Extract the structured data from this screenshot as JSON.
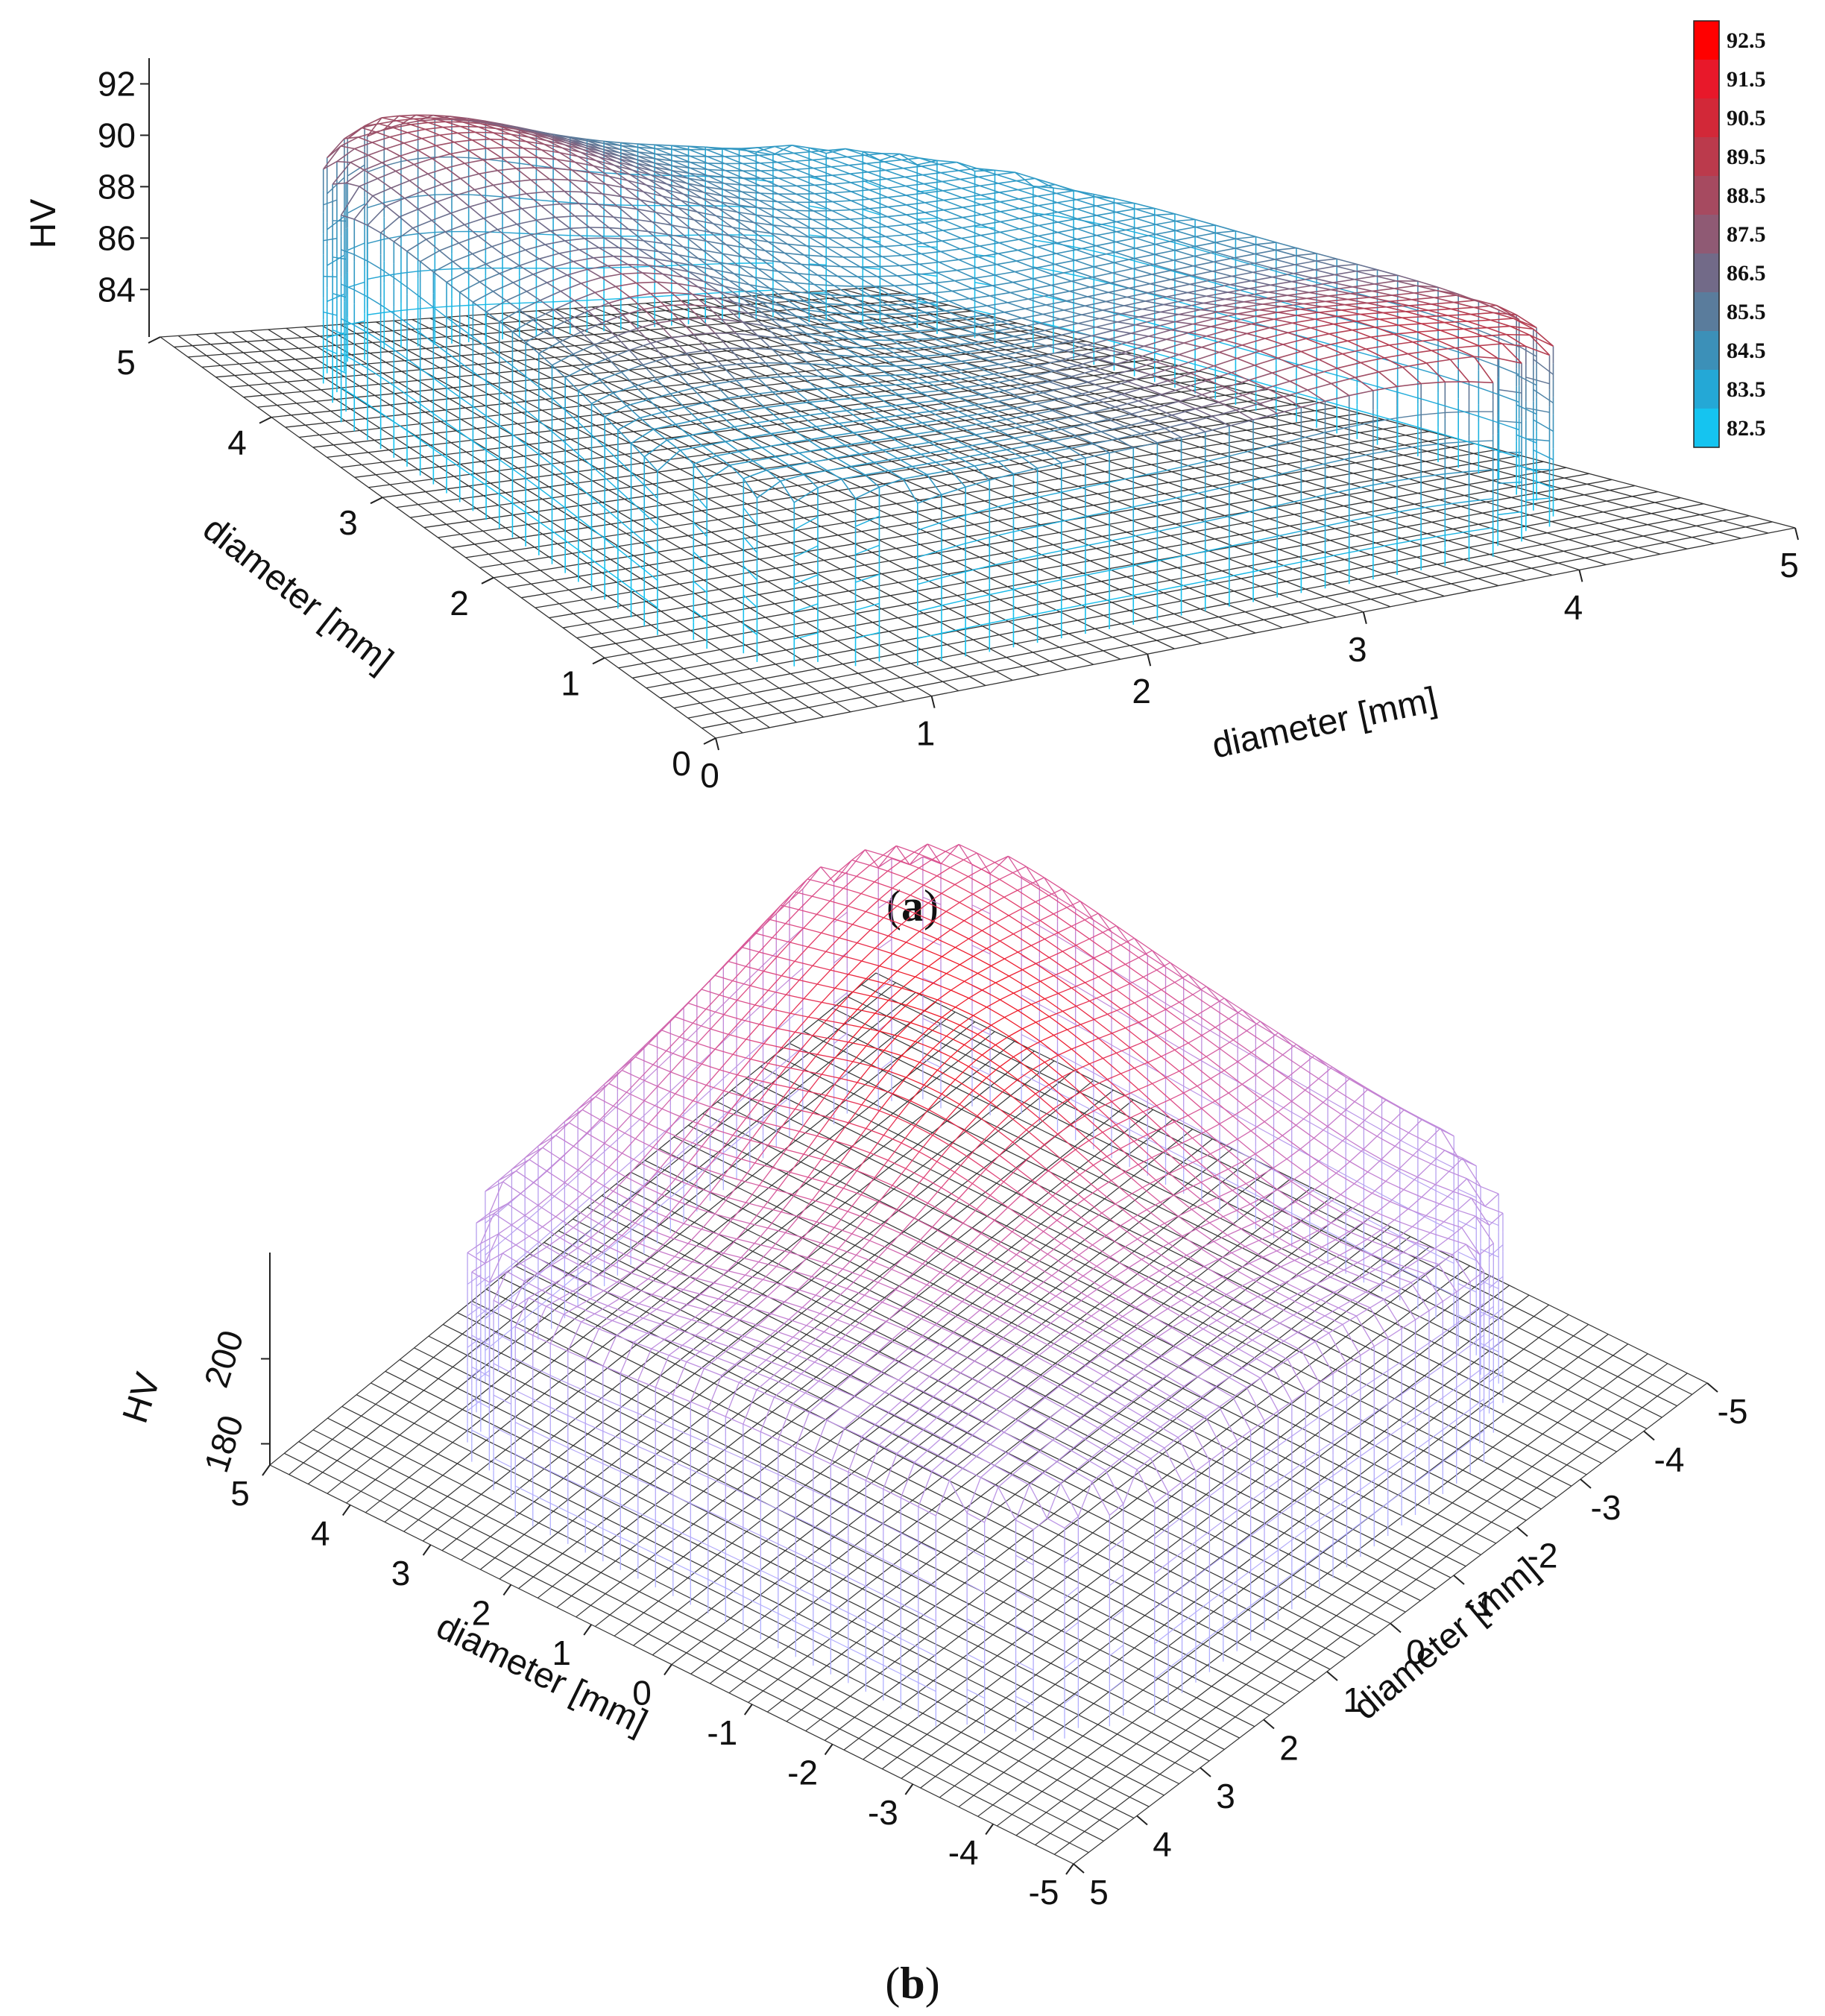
{
  "chart_data": [
    {
      "panel": "a",
      "type": "surface-wireframe",
      "zlabel": "HV",
      "xlabel": "diameter [mm]",
      "ylabel": "diameter [mm]",
      "xticks": [
        "0",
        "1",
        "2",
        "3",
        "4",
        "5"
      ],
      "yticks": [
        "0",
        "1",
        "2",
        "3",
        "4",
        "5"
      ],
      "zticks": [
        "84",
        "86",
        "88",
        "90",
        "92"
      ],
      "zlim": [
        82.5,
        93
      ],
      "colorbar": [
        "92.5",
        "91.5",
        "90.5",
        "89.5",
        "88.5",
        "87.5",
        "86.5",
        "85.5",
        "84.5",
        "83.5",
        "82.5"
      ],
      "colorbar_colors": [
        "#ff0000",
        "#e8182a",
        "#d22838",
        "#bb3a4c",
        "#a64a60",
        "#8f5a74",
        "#726a88",
        "#5a7c9c",
        "#3c90b8",
        "#24a8d6",
        "#15c4f0"
      ],
      "color_low": "#1ec6ee",
      "color_mid": "#8a5a80",
      "color_high": "#ff1a1a"
    },
    {
      "panel": "b",
      "type": "surface-wireframe",
      "zlabel": "HV",
      "xlabel": "diameter [mm]",
      "ylabel": "diameter [mm]",
      "yticks": [
        "5",
        "4",
        "3",
        "2",
        "1",
        "0",
        "-1",
        "-2",
        "-3",
        "-4",
        "-5"
      ],
      "xticks": [
        "5",
        "4",
        "3",
        "2",
        "1",
        "0",
        "-1",
        "-2",
        "-3",
        "-4",
        "-5"
      ],
      "zticks": [
        "180",
        "200"
      ],
      "zlim": [
        175,
        225
      ],
      "color_low": "#b0b0ff",
      "color_high": "#ee1c2a"
    }
  ],
  "captions": {
    "a": {
      "open": "(",
      "letter": "a",
      "close": ")"
    },
    "b": {
      "open": "(",
      "letter": "b",
      "close": ")"
    }
  }
}
